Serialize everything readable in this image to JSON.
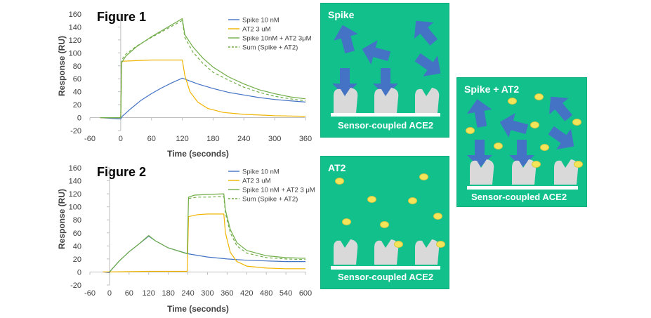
{
  "chart_data": [
    {
      "type": "line",
      "title": "Figure 1",
      "xlabel": "Time (seconds)",
      "ylabel": "Response (RU)",
      "xlim": [
        -60,
        360
      ],
      "ylim": [
        -20,
        160
      ],
      "xticks": [
        -60,
        0,
        60,
        120,
        180,
        240,
        300,
        360
      ],
      "yticks": [
        -20,
        0,
        20,
        40,
        60,
        80,
        100,
        120,
        140,
        160
      ],
      "grid": false,
      "legend_position": "top-right",
      "series": [
        {
          "name": "Spike 10 nM",
          "color": "#4472c4",
          "dash": false,
          "points": [
            [
              -40,
              0
            ],
            [
              0,
              -2
            ],
            [
              3,
              2
            ],
            [
              20,
              14
            ],
            [
              40,
              27
            ],
            [
              60,
              37
            ],
            [
              80,
              46
            ],
            [
              100,
              54
            ],
            [
              120,
              61
            ],
            [
              130,
              58
            ],
            [
              150,
              52
            ],
            [
              180,
              45
            ],
            [
              210,
              39
            ],
            [
              240,
              35
            ],
            [
              270,
              31
            ],
            [
              300,
              28
            ],
            [
              330,
              26
            ],
            [
              360,
              24
            ]
          ]
        },
        {
          "name": "AT2 3 uM",
          "color": "#f0b400",
          "dash": false,
          "points": [
            [
              -40,
              0
            ],
            [
              0,
              0
            ],
            [
              2,
              87
            ],
            [
              30,
              88
            ],
            [
              60,
              89
            ],
            [
              90,
              89
            ],
            [
              120,
              89
            ],
            [
              125,
              65
            ],
            [
              135,
              40
            ],
            [
              150,
              24
            ],
            [
              170,
              14
            ],
            [
              200,
              8
            ],
            [
              240,
              5
            ],
            [
              300,
              3
            ],
            [
              360,
              2
            ]
          ]
        },
        {
          "name": "Spike 10nM + AT2 3μM",
          "color": "#70ad47",
          "dash": false,
          "points": [
            [
              -40,
              0
            ],
            [
              0,
              0
            ],
            [
              2,
              85
            ],
            [
              10,
              95
            ],
            [
              30,
              109
            ],
            [
              60,
              125
            ],
            [
              90,
              139
            ],
            [
              120,
              153
            ],
            [
              125,
              128
            ],
            [
              140,
              110
            ],
            [
              160,
              92
            ],
            [
              180,
              78
            ],
            [
              210,
              63
            ],
            [
              240,
              52
            ],
            [
              270,
              43
            ],
            [
              300,
              37
            ],
            [
              330,
              32
            ],
            [
              360,
              29
            ]
          ]
        },
        {
          "name": "Sum (Spike + AT2)",
          "color": "#70ad47",
          "dash": true,
          "points": [
            [
              0,
              0
            ],
            [
              2,
              89
            ],
            [
              10,
              98
            ],
            [
              30,
              110
            ],
            [
              60,
              124
            ],
            [
              90,
              137
            ],
            [
              120,
              150
            ],
            [
              125,
              124
            ],
            [
              140,
              102
            ],
            [
              160,
              84
            ],
            [
              180,
              70
            ],
            [
              210,
              58
            ],
            [
              240,
              47
            ],
            [
              270,
              39
            ],
            [
              300,
              33
            ],
            [
              330,
              29
            ],
            [
              360,
              26
            ]
          ]
        }
      ]
    },
    {
      "type": "line",
      "title": "Figure 2",
      "xlabel": "Time (seconds)",
      "ylabel": "Response (RU)",
      "xlim": [
        -60,
        600
      ],
      "ylim": [
        -20,
        160
      ],
      "xticks": [
        -60,
        0,
        60,
        120,
        180,
        240,
        300,
        360,
        420,
        480,
        540,
        600
      ],
      "yticks": [
        -20,
        0,
        20,
        40,
        60,
        80,
        100,
        120,
        140,
        160
      ],
      "grid": false,
      "legend_position": "top-right",
      "series": [
        {
          "name": "Spike 10 nM",
          "color": "#4472c4",
          "dash": false,
          "points": [
            [
              -20,
              0
            ],
            [
              0,
              -1
            ],
            [
              2,
              1
            ],
            [
              30,
              17
            ],
            [
              60,
              31
            ],
            [
              90,
              43
            ],
            [
              120,
              55
            ],
            [
              140,
              48
            ],
            [
              180,
              37
            ],
            [
              240,
              28
            ],
            [
              300,
              23
            ],
            [
              360,
              20
            ],
            [
              420,
              18
            ],
            [
              480,
              17
            ],
            [
              540,
              16
            ],
            [
              600,
              16
            ]
          ]
        },
        {
          "name": "AT2 3 uM",
          "color": "#f0b400",
          "dash": false,
          "points": [
            [
              -20,
              0
            ],
            [
              0,
              0
            ],
            [
              120,
              1
            ],
            [
              238,
              1
            ],
            [
              242,
              85
            ],
            [
              270,
              88
            ],
            [
              300,
              89
            ],
            [
              350,
              89
            ],
            [
              355,
              60
            ],
            [
              370,
              30
            ],
            [
              390,
              16
            ],
            [
              420,
              9
            ],
            [
              480,
              6
            ],
            [
              540,
              5
            ],
            [
              600,
              5
            ]
          ]
        },
        {
          "name": "Spike 10 nM + AT2 3 μM",
          "color": "#70ad47",
          "dash": false,
          "points": [
            [
              0,
              0
            ],
            [
              30,
              17
            ],
            [
              60,
              31
            ],
            [
              90,
              43
            ],
            [
              120,
              56
            ],
            [
              140,
              48
            ],
            [
              180,
              37
            ],
            [
              238,
              28
            ],
            [
              242,
              115
            ],
            [
              260,
              118
            ],
            [
              300,
              119
            ],
            [
              350,
              120
            ],
            [
              355,
              95
            ],
            [
              370,
              65
            ],
            [
              390,
              45
            ],
            [
              420,
              33
            ],
            [
              480,
              25
            ],
            [
              540,
              22
            ],
            [
              600,
              21
            ]
          ]
        },
        {
          "name": "Sum (Spike + AT2)",
          "color": "#70ad47",
          "dash": true,
          "points": [
            [
              242,
              113
            ],
            [
              270,
              115
            ],
            [
              300,
              115
            ],
            [
              350,
              116
            ],
            [
              355,
              90
            ],
            [
              370,
              60
            ],
            [
              390,
              40
            ],
            [
              420,
              29
            ],
            [
              480,
              22
            ],
            [
              540,
              20
            ],
            [
              600,
              19
            ]
          ]
        }
      ]
    }
  ],
  "panels": {
    "spike": {
      "title": "Spike",
      "base_label": "Sensor-coupled ACE2"
    },
    "at2": {
      "title": "AT2",
      "base_label": "Sensor-coupled ACE2"
    },
    "combined": {
      "title": "Spike + AT2",
      "base_label": "Sensor-coupled ACE2"
    }
  },
  "colors": {
    "panel": "#12c08c",
    "arrow": "#4472c4",
    "at2_dot": "#f3e45a",
    "receptor": "#d9d9d9"
  }
}
